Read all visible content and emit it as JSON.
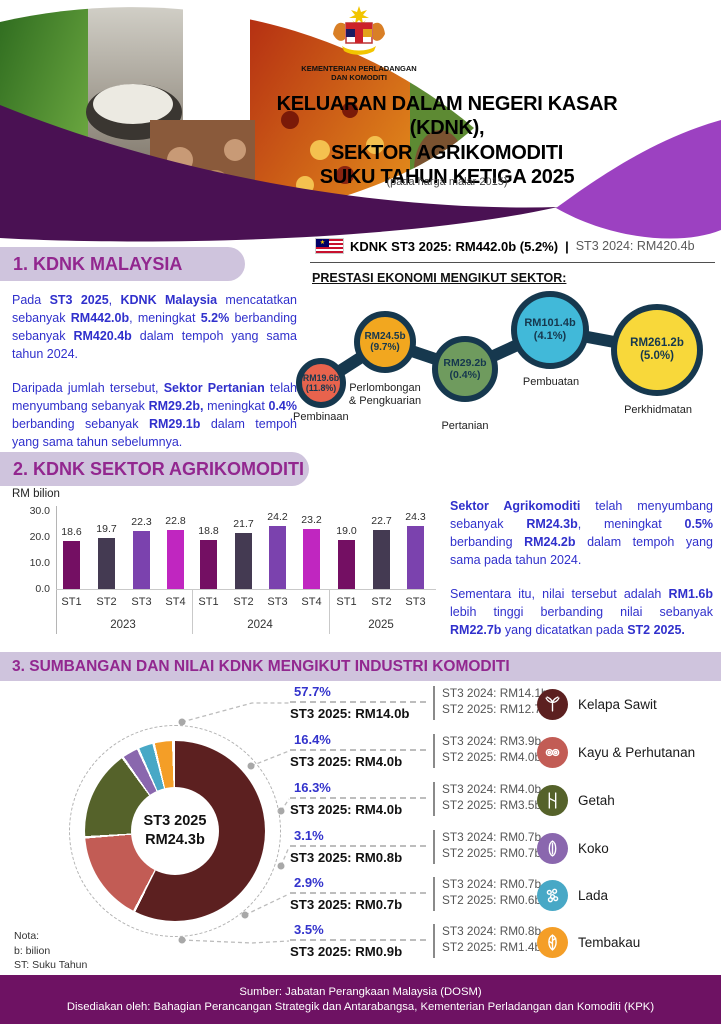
{
  "colors": {
    "purple_dark_band": "#4a1153",
    "purple_swoosh": "#9c41c1",
    "pill_bg": "#cfc4dd",
    "heading_text": "#92278f",
    "body_blue": "#3030cc",
    "connector_navy": "#16384e",
    "footer_bg": "#6e1263"
  },
  "header": {
    "ministry_line1": "KEMENTERIAN PERLADANGAN",
    "ministry_line2": "DAN KOMODITI",
    "title_line1": "KELUARAN DALAM NEGERI KASAR (KDNK),",
    "title_line2": "SEKTOR AGRIKOMODITI",
    "title_line3": "SUKU TAHUN KETIGA 2025",
    "subtitle": "(pada harga malar 2015)"
  },
  "banner": {
    "bold": "KDNK ST3 2025: RM442.0b (5.2%)",
    "divider": "|",
    "gray": "ST3 2024: RM420.4b"
  },
  "section1": {
    "heading": "1. KDNK MALAYSIA",
    "p1": [
      [
        "Pada ",
        0
      ],
      [
        "ST3 2025",
        1
      ],
      [
        ", ",
        0
      ],
      [
        "KDNK Malaysia",
        1
      ],
      [
        " mencatatkan sebanyak ",
        0
      ],
      [
        "RM442.0b",
        1
      ],
      [
        ", meningkat ",
        0
      ],
      [
        "5.2%",
        1
      ],
      [
        " berbanding sebanyak ",
        0
      ],
      [
        "RM420.4b",
        1
      ],
      [
        " dalam tempoh yang sama tahun 2024.",
        0
      ]
    ],
    "p2": [
      [
        "Daripada jumlah tersebut, ",
        0
      ],
      [
        "Sektor Pertanian",
        1
      ],
      [
        " telah menyumbang sebanyak ",
        0
      ],
      [
        "RM29.2b,",
        1
      ],
      [
        " meningkat ",
        0
      ],
      [
        "0.4%",
        1
      ],
      [
        " berbanding sebanyak ",
        0
      ],
      [
        "RM29.1b",
        1
      ],
      [
        " dalam tempoh yang sama tahun sebelumnya.",
        0
      ]
    ],
    "subheading": "PRESTASI EKONOMI MENGIKUT SEKTOR:"
  },
  "section2": {
    "heading": "2. KDNK SEKTOR AGRIKOMODITI",
    "p1": [
      [
        "Sektor Agrikomoditi",
        1
      ],
      [
        " telah menyumbang sebanyak ",
        0
      ],
      [
        "RM24.3b",
        1
      ],
      [
        ", meningkat ",
        0
      ],
      [
        "0.5%",
        1
      ],
      [
        " berbanding ",
        0
      ],
      [
        "RM24.2b",
        1
      ],
      [
        " dalam tempoh yang sama pada tahun 2024.",
        0
      ]
    ],
    "p2": [
      [
        "Sementara itu, nilai tersebut adalah ",
        0
      ],
      [
        "RM1.6b",
        1
      ],
      [
        " lebih tinggi berbanding nilai sebanyak ",
        0
      ],
      [
        "RM22.7b",
        1
      ],
      [
        " yang dicatatkan pada ",
        0
      ],
      [
        "ST2 2025.",
        1
      ]
    ]
  },
  "section3": {
    "heading": "3. SUMBANGAN DAN NILAI KDNK MENGIKUT INDUSTRI KOMODITI",
    "note_lines": [
      "Nota:",
      "b: bilion",
      "ST: Suku Tahun"
    ]
  },
  "footer": {
    "line1": "Sumber: Jabatan Perangkaan Malaysia (DOSM)",
    "line2": "Disediakan oleh: Bahagian Perancangan Strategik dan Antarabangsa, Kementerian Perladangan dan Komoditi (KPK)"
  },
  "chart_data": [
    {
      "type": "bubble",
      "title": "PRESTASI EKONOMI MENGIKUT SEKTOR:",
      "points": [
        {
          "label": "Pembinaan",
          "label_lines": [
            "Pembinaan"
          ],
          "value": "RM19.6b",
          "growth": "(11.8%)",
          "color": "#e8634d"
        },
        {
          "label": "Perlombongan & Pengkuarian",
          "label_lines": [
            "Perlombongan",
            "& Pengkuarian"
          ],
          "value": "RM24.5b",
          "growth": "(9.7%)",
          "color": "#f2a71f"
        },
        {
          "label": "Pertanian",
          "label_lines": [
            "Pertanian"
          ],
          "value": "RM29.2b",
          "growth": "(0.4%)",
          "color": "#6f9b5e"
        },
        {
          "label": "Pembuatan",
          "label_lines": [
            "Pembuatan"
          ],
          "value": "RM101.4b",
          "growth": "(4.1%)",
          "color": "#41b9d9"
        },
        {
          "label": "Perkhidmatan",
          "label_lines": [
            "Perkhidmatan"
          ],
          "value": "RM261.2b",
          "growth": "(5.0%)",
          "color": "#f8d83a"
        }
      ]
    },
    {
      "type": "bar",
      "ylabel": "RM bilion",
      "ylim": [
        0,
        30
      ],
      "yticks": [
        "30.0",
        "20.0",
        "10.0",
        "0.0"
      ],
      "bar_colors": [
        "#740f63",
        "#443a52",
        "#7b42ae",
        "#c026c0"
      ],
      "groups": [
        {
          "year": "2023",
          "quarters": [
            "ST1",
            "ST2",
            "ST3",
            "ST4"
          ],
          "values": [
            18.6,
            19.7,
            22.3,
            22.8
          ]
        },
        {
          "year": "2024",
          "quarters": [
            "ST1",
            "ST2",
            "ST3",
            "ST4"
          ],
          "values": [
            18.8,
            21.7,
            24.2,
            23.2
          ]
        },
        {
          "year": "2025",
          "quarters": [
            "ST1",
            "ST2",
            "ST3"
          ],
          "values": [
            19.0,
            22.7,
            24.3
          ]
        }
      ]
    },
    {
      "type": "pie",
      "center_label1": "ST3 2025",
      "center_label2": "RM24.3b",
      "slices": [
        {
          "label": "Kelapa Sawit",
          "pct": 57.7,
          "pct_label": "57.7%",
          "color": "#5c2020",
          "icon": "palm-oil-icon",
          "st3_2025": "ST3 2025: RM14.0b",
          "st3_2024": "ST3 2024: RM14.1b",
          "st2_2025": "ST2 2025: RM12.7b"
        },
        {
          "label": "Kayu & Perhutanan",
          "pct": 16.4,
          "pct_label": "16.4%",
          "color": "#c25c55",
          "icon": "timber-icon",
          "st3_2025": "ST3 2025: RM4.0b",
          "st3_2024": "ST3 2024: RM3.9b",
          "st2_2025": "ST2 2025: RM4.0b"
        },
        {
          "label": "Getah",
          "pct": 16.3,
          "pct_label": "16.3%",
          "color": "#55622a",
          "icon": "rubber-tap-icon",
          "st3_2025": "ST3 2025: RM4.0b",
          "st3_2024": "ST3 2024: RM4.0b",
          "st2_2025": "ST2 2025: RM3.5b"
        },
        {
          "label": "Koko",
          "pct": 3.1,
          "pct_label": "3.1%",
          "color": "#8a67ae",
          "icon": "cocoa-icon",
          "st3_2025": "ST3 2025: RM0.8b",
          "st3_2024": "ST3 2024: RM0.7b",
          "st2_2025": "ST2 2025: RM0.7b"
        },
        {
          "label": "Lada",
          "pct": 2.9,
          "pct_label": "2.9%",
          "color": "#48a8c6",
          "icon": "pepper-icon",
          "st3_2025": "ST3 2025: RM0.7b",
          "st3_2024": "ST3 2024: RM0.7b",
          "st2_2025": "ST2 2025: RM0.6b"
        },
        {
          "label": "Tembakau",
          "pct": 3.5,
          "pct_label": "3.5%",
          "color": "#f49e27",
          "icon": "tobacco-icon",
          "st3_2025": "ST3 2025: RM0.9b",
          "st3_2024": "ST3 2024: RM0.8b",
          "st2_2025": "ST2 2025: RM1.4b"
        }
      ]
    }
  ]
}
